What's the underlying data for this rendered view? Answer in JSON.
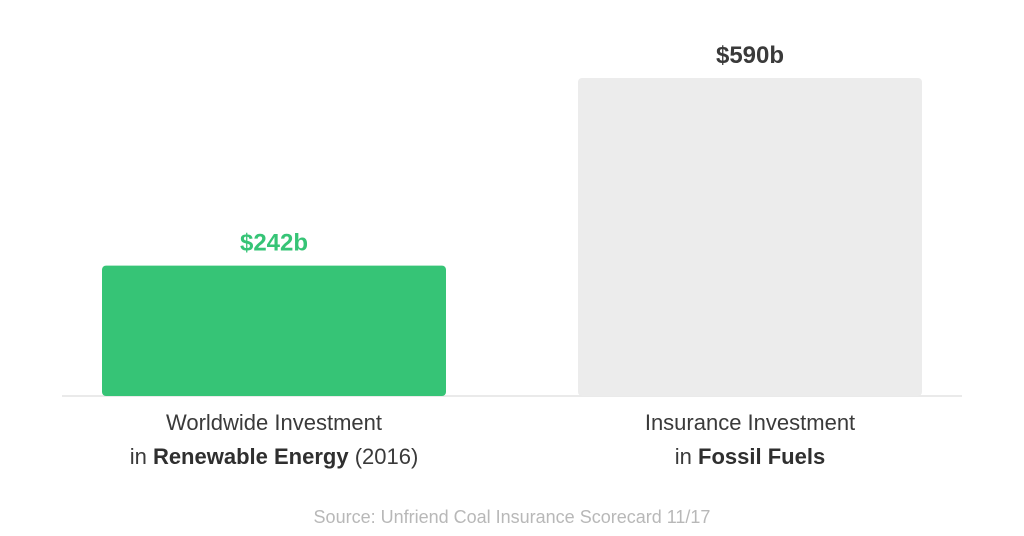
{
  "chart_data": {
    "type": "bar",
    "categories": [
      {
        "line1": [
          {
            "text": "Worldwide Investment",
            "bold": false
          }
        ],
        "line2": [
          {
            "text": "in ",
            "bold": false
          },
          {
            "text": "Renewable Energy",
            "bold": true
          },
          {
            "text": " (2016)",
            "bold": false
          }
        ]
      },
      {
        "line1": [
          {
            "text": "Insurance Investment",
            "bold": false
          }
        ],
        "line2": [
          {
            "text": "in ",
            "bold": false
          },
          {
            "text": "Fossil Fuels",
            "bold": true
          }
        ]
      }
    ],
    "values": [
      242,
      590
    ],
    "value_labels": [
      "$242b",
      "$590b"
    ],
    "bar_colors": [
      "#36c476",
      "#ececec"
    ],
    "label_colors": [
      "#36c476",
      "#3a3a3a"
    ],
    "ylim": [
      0,
      600
    ],
    "grid": false,
    "source": "Source: Unfriend Coal Insurance Scorecard 11/17"
  }
}
